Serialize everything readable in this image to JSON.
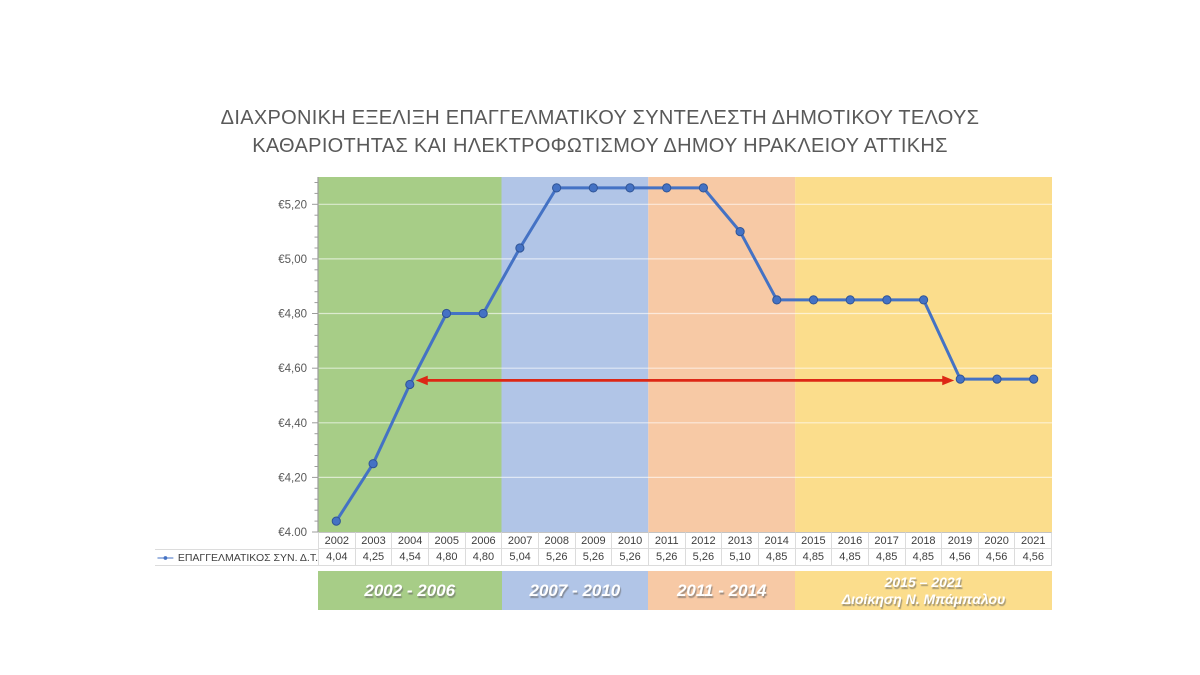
{
  "title": {
    "line1": "ΔΙΑΧΡΟΝΙΚΗ ΕΞΕΛΙΞΗ ΕΠΑΓΓΕΛΜΑΤΙΚΟΥ ΣΥΝΤΕΛΕΣΤΗ ΔΗΜΟΤΙΚΟΥ ΤΕΛΟΥΣ",
    "line2": "ΚΑΘΑΡΙΟΤΗΤΑΣ ΚΑΙ ΗΛΕΚΤΡΟΦΩΤΙΣΜΟΥ ΔΗΜΟΥ ΗΡΑΚΛΕΙΟΥ ΑΤΤΙΚΗΣ",
    "color": "#595959"
  },
  "chart_data": {
    "type": "line",
    "title": "ΔΙΑΧΡΟΝΙΚΗ ΕΞΕΛΙΞΗ ΕΠΑΓΓΕΛΜΑΤΙΚΟΥ ΣΥΝΤΕΛΕΣΤΗ ΔΗΜΟΤΙΚΟΥ ΤΕΛΟΥΣ ΚΑΘΑΡΙΟΤΗΤΑΣ ΚΑΙ ΗΛΕΚΤΡΟΦΩΤΙΣΜΟΥ ΔΗΜΟΥ ΗΡΑΚΛΕΙΟΥ ΑΤΤΙΚΗΣ",
    "categories": [
      "2002",
      "2003",
      "2004",
      "2005",
      "2006",
      "2007",
      "2008",
      "2009",
      "2010",
      "2011",
      "2012",
      "2013",
      "2014",
      "2015",
      "2016",
      "2017",
      "2018",
      "2019",
      "2020",
      "2021"
    ],
    "series": [
      {
        "name": "ΕΠΑΓΓΕΛΜΑΤΙΚΟΣ ΣΥΝ. Δ.Τ.",
        "color": "#4472C4",
        "marker_edge_color": "#2F5496",
        "values": [
          4.04,
          4.25,
          4.54,
          4.8,
          4.8,
          5.04,
          5.26,
          5.26,
          5.26,
          5.26,
          5.26,
          5.1,
          4.85,
          4.85,
          4.85,
          4.85,
          4.85,
          4.56,
          4.56,
          4.56
        ]
      }
    ],
    "value_labels": [
      "4,04",
      "4,25",
      "4,54",
      "4,80",
      "4,80",
      "5,04",
      "5,26",
      "5,26",
      "5,26",
      "5,26",
      "5,26",
      "5,10",
      "4,85",
      "4,85",
      "4,85",
      "4,85",
      "4,85",
      "4,56",
      "4,56",
      "4,56"
    ],
    "ylim": [
      4.0,
      5.3
    ],
    "yticks": [
      4.0,
      4.2,
      4.4,
      4.6,
      4.8,
      5.0,
      5.2
    ],
    "ytick_labels": [
      "€4,00",
      "€4,20",
      "€4,40",
      "€4,60",
      "€4,80",
      "€5,00",
      "€5,20"
    ],
    "minor_tick_step": 0.04,
    "grid": true,
    "gridline_color": "rgba(255,255,255,0.6)",
    "axis_color": "#9c9c9c",
    "tick_label_color": "#595959",
    "legend_position": "table-left",
    "bands": [
      {
        "label": "2002 - 2006",
        "from": "2002",
        "to": "2006",
        "color": "#A7CD87"
      },
      {
        "label": "2007 - 2010",
        "from": "2007",
        "to": "2010",
        "color": "#B1C5E7"
      },
      {
        "label": "2011 - 2014",
        "from": "2011",
        "to": "2014",
        "color": "#F7C9A5"
      },
      {
        "label": "2015 – 2021",
        "sublabel": "Διοίκηση Ν. Μπάμπαλου",
        "from": "2015",
        "to": "2021",
        "color": "#FBDD8C"
      }
    ],
    "annotation": {
      "type": "double-arrow",
      "from": "2004",
      "to": "2019",
      "value": 4.555,
      "color": "#DD2715"
    }
  }
}
